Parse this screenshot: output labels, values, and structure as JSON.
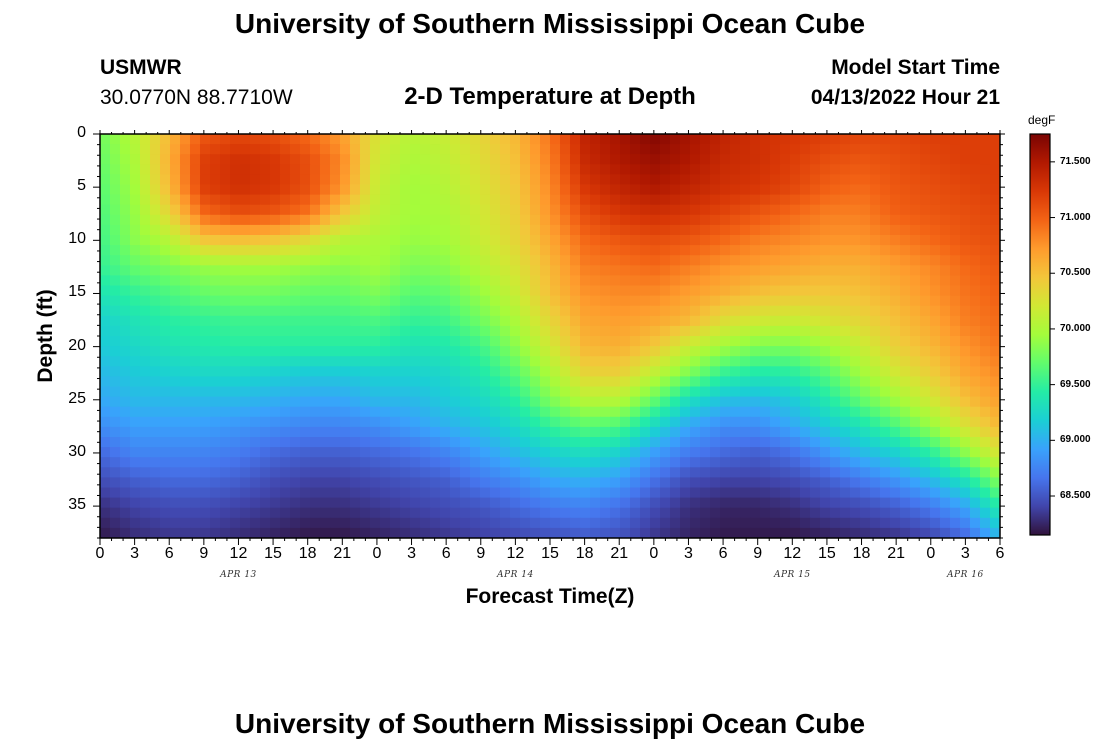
{
  "page": {
    "title": "University of Southern Mississippi Ocean Cube",
    "title_repeat": "University of Southern Mississippi Ocean Cube",
    "station": "USMWR",
    "coords": "30.0770N  88.7710W",
    "subtitle": "2-D Temperature at Depth",
    "model_label": "Model Start Time",
    "model_time": "04/13/2022 Hour 21"
  },
  "chart_data": {
    "type": "heatmap",
    "title": "2-D Temperature at Depth",
    "xlabel": "Forecast Time(Z)",
    "ylabel": "Depth (ft)",
    "x_range_hours": [
      0,
      78
    ],
    "x_tick_step_hours": 3,
    "x_tick_labels": [
      "0",
      "3",
      "6",
      "9",
      "12",
      "15",
      "18",
      "21",
      "0",
      "3",
      "6",
      "9",
      "12",
      "15",
      "18",
      "21",
      "0",
      "3",
      "6",
      "9",
      "12",
      "15",
      "18",
      "21",
      "0",
      "3",
      "6"
    ],
    "date_labels": [
      {
        "text": "APR 13",
        "hour": 12
      },
      {
        "text": "APR 14",
        "hour": 36
      },
      {
        "text": "APR 15",
        "hour": 60
      },
      {
        "text": "APR 16",
        "hour": 75
      }
    ],
    "y_range_ft": [
      0,
      38
    ],
    "y_tick_values": [
      0,
      5,
      10,
      15,
      20,
      25,
      30,
      35
    ],
    "y_tick_labels": [
      "0",
      "5",
      "10",
      "15",
      "20",
      "25",
      "30",
      "35"
    ],
    "colorbar": {
      "unit": "degF",
      "range": [
        68.15,
        71.75
      ],
      "ticks": [
        68.5,
        69.0,
        69.5,
        70.0,
        70.5,
        71.0,
        71.5
      ],
      "tick_labels": [
        "68.500",
        "69.000",
        "69.500",
        "70.000",
        "70.500",
        "71.000",
        "71.500"
      ],
      "colors": [
        "#30123b",
        "#4145ab",
        "#4675ed",
        "#39a2fc",
        "#1bcfd4",
        "#24eca6",
        "#61fc6c",
        "#a4fc3b",
        "#d1e834",
        "#f3c63a",
        "#fe9b2d",
        "#f36315",
        "#d93806",
        "#b11901",
        "#7a0403"
      ]
    },
    "field_hours": [
      0,
      3,
      6,
      9,
      12,
      15,
      18,
      21,
      24,
      27,
      30,
      33,
      36,
      39,
      42,
      45,
      48,
      51,
      54,
      57,
      60,
      63,
      66,
      69,
      72,
      75,
      78
    ],
    "field_depths_ft": [
      0,
      2.5,
      5,
      7.5,
      10,
      12.5,
      15,
      17.5,
      20,
      22.5,
      25,
      27.5,
      30,
      32.5,
      35,
      37.5
    ],
    "field_degF": [
      [
        69.75,
        70.05,
        70.55,
        71.05,
        71.15,
        71.1,
        70.95,
        70.7,
        70.25,
        70.05,
        70.15,
        70.35,
        70.55,
        70.9,
        71.4,
        71.55,
        71.7,
        71.55,
        71.4,
        71.3,
        71.25,
        71.2,
        71.15,
        71.15,
        71.2,
        71.2,
        71.2
      ],
      [
        69.7,
        70.0,
        70.6,
        71.2,
        71.3,
        71.25,
        71.1,
        70.8,
        70.2,
        70.0,
        70.1,
        70.3,
        70.5,
        70.85,
        71.35,
        71.5,
        71.6,
        71.5,
        71.35,
        71.3,
        71.2,
        71.1,
        71.05,
        71.1,
        71.15,
        71.2,
        71.2
      ],
      [
        69.65,
        69.95,
        70.55,
        71.2,
        71.3,
        71.25,
        71.1,
        70.75,
        70.15,
        69.95,
        70.05,
        70.25,
        70.45,
        70.8,
        71.25,
        71.4,
        71.5,
        71.4,
        71.3,
        71.25,
        71.15,
        71.0,
        70.95,
        71.05,
        71.1,
        71.15,
        71.2
      ],
      [
        69.6,
        69.9,
        70.35,
        70.95,
        71.1,
        71.05,
        70.9,
        70.45,
        70.1,
        69.95,
        70.0,
        70.2,
        70.4,
        70.75,
        71.1,
        71.25,
        71.3,
        71.25,
        71.15,
        71.05,
        70.95,
        70.85,
        70.85,
        71.0,
        71.05,
        71.1,
        71.15
      ],
      [
        69.55,
        69.85,
        70.05,
        70.45,
        70.5,
        70.45,
        70.3,
        70.05,
        70.0,
        69.9,
        69.95,
        70.15,
        70.35,
        70.65,
        70.95,
        71.05,
        71.1,
        71.05,
        70.95,
        70.85,
        70.8,
        70.75,
        70.75,
        70.85,
        70.95,
        71.05,
        71.1
      ],
      [
        69.5,
        69.7,
        69.8,
        69.9,
        69.95,
        69.95,
        69.9,
        69.85,
        69.95,
        69.8,
        69.85,
        70.05,
        70.25,
        70.55,
        70.85,
        70.9,
        70.95,
        70.85,
        70.75,
        70.7,
        70.65,
        70.6,
        70.6,
        70.7,
        70.8,
        70.95,
        71.05
      ],
      [
        69.35,
        69.5,
        69.6,
        69.7,
        69.75,
        69.75,
        69.7,
        69.7,
        69.8,
        69.65,
        69.7,
        69.9,
        70.15,
        70.5,
        70.75,
        70.8,
        70.8,
        70.7,
        70.6,
        70.5,
        70.45,
        70.45,
        70.5,
        70.6,
        70.75,
        70.9,
        71.0
      ],
      [
        69.2,
        69.35,
        69.45,
        69.5,
        69.55,
        69.55,
        69.55,
        69.55,
        69.6,
        69.5,
        69.55,
        69.75,
        70.0,
        70.35,
        70.65,
        70.7,
        70.65,
        70.55,
        70.3,
        70.2,
        70.15,
        70.25,
        70.35,
        70.5,
        70.65,
        70.85,
        70.95
      ],
      [
        69.15,
        69.25,
        69.35,
        69.4,
        69.45,
        69.45,
        69.45,
        69.45,
        69.45,
        69.35,
        69.4,
        69.55,
        69.85,
        70.2,
        70.55,
        70.6,
        70.45,
        70.15,
        69.95,
        69.8,
        69.8,
        69.95,
        70.15,
        70.4,
        70.55,
        70.75,
        70.9
      ],
      [
        69.05,
        69.15,
        69.2,
        69.25,
        69.25,
        69.2,
        69.15,
        69.15,
        69.2,
        69.2,
        69.25,
        69.4,
        69.65,
        70.0,
        70.35,
        70.4,
        70.1,
        69.8,
        69.5,
        69.4,
        69.45,
        69.65,
        69.95,
        70.2,
        70.4,
        70.65,
        70.8
      ],
      [
        68.95,
        69.05,
        69.05,
        69.05,
        69.05,
        69.0,
        68.95,
        68.95,
        69.05,
        69.05,
        69.15,
        69.25,
        69.45,
        69.8,
        70.05,
        70.05,
        69.7,
        69.3,
        69.1,
        69.05,
        69.15,
        69.4,
        69.7,
        69.95,
        70.2,
        70.5,
        70.7
      ],
      [
        68.8,
        68.9,
        68.9,
        68.9,
        68.85,
        68.8,
        68.75,
        68.75,
        68.8,
        68.9,
        69.0,
        69.1,
        69.25,
        69.5,
        69.65,
        69.6,
        69.25,
        68.95,
        68.8,
        68.8,
        68.95,
        69.15,
        69.35,
        69.6,
        69.9,
        70.25,
        70.55
      ],
      [
        68.6,
        68.75,
        68.75,
        68.75,
        68.7,
        68.6,
        68.55,
        68.55,
        68.6,
        68.65,
        68.75,
        68.9,
        69.05,
        69.2,
        69.3,
        69.2,
        68.9,
        68.7,
        68.6,
        68.55,
        68.65,
        68.85,
        69.05,
        69.2,
        69.45,
        69.85,
        70.25
      ],
      [
        68.45,
        68.55,
        68.6,
        68.6,
        68.55,
        68.45,
        68.4,
        68.4,
        68.45,
        68.5,
        68.55,
        68.7,
        68.8,
        68.95,
        69.0,
        68.9,
        68.65,
        68.45,
        68.4,
        68.4,
        68.45,
        68.55,
        68.7,
        68.85,
        69.05,
        69.35,
        69.85
      ],
      [
        68.3,
        68.4,
        68.45,
        68.45,
        68.4,
        68.35,
        68.3,
        68.3,
        68.35,
        68.4,
        68.45,
        68.5,
        68.6,
        68.7,
        68.75,
        68.65,
        68.45,
        68.3,
        68.25,
        68.25,
        68.3,
        68.4,
        68.45,
        68.55,
        68.7,
        68.95,
        69.45
      ],
      [
        68.2,
        68.3,
        68.35,
        68.35,
        68.3,
        68.25,
        68.2,
        68.2,
        68.25,
        68.3,
        68.35,
        68.4,
        68.45,
        68.5,
        68.55,
        68.5,
        68.35,
        68.25,
        68.2,
        68.2,
        68.2,
        68.25,
        68.3,
        68.35,
        68.45,
        68.65,
        69.1
      ]
    ]
  }
}
